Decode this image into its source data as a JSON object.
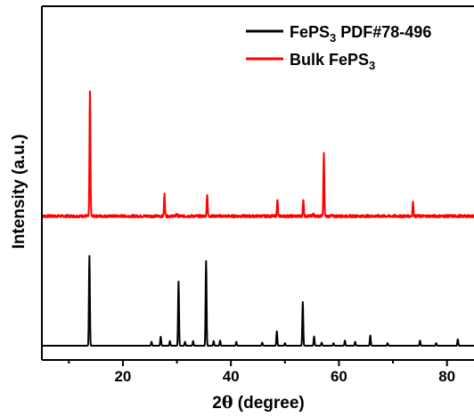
{
  "chart_data": {
    "type": "line",
    "xlabel": "2θ (degree)",
    "ylabel": "Intensity (a.u.)",
    "xlim": [
      5,
      85
    ],
    "x_ticks": [
      20,
      40,
      60,
      80
    ],
    "x_tick_labels": [
      "20",
      "40",
      "60",
      "80"
    ],
    "y_ticks_shown": false,
    "ylim": [
      0,
      100
    ],
    "legend_position": "top-right",
    "series": [
      {
        "name": "FePS3 PDF#78-496",
        "color": "#000000",
        "baseline": 0,
        "noise": 0,
        "peaks": [
          [
            13.8,
            35
          ],
          [
            25.3,
            1.5
          ],
          [
            27.0,
            3.5
          ],
          [
            28.7,
            1.8
          ],
          [
            30.3,
            25
          ],
          [
            31.5,
            1.5
          ],
          [
            33.0,
            1.8
          ],
          [
            35.4,
            33
          ],
          [
            36.8,
            1.8
          ],
          [
            38.0,
            2
          ],
          [
            41.0,
            1.5
          ],
          [
            45.8,
            1.2
          ],
          [
            48.5,
            5.6
          ],
          [
            50.0,
            1
          ],
          [
            53.3,
            17
          ],
          [
            55.4,
            3.6
          ],
          [
            56.8,
            1.2
          ],
          [
            59.0,
            1
          ],
          [
            61.1,
            2
          ],
          [
            63.0,
            1.5
          ],
          [
            65.8,
            4
          ],
          [
            69.0,
            1
          ],
          [
            75.0,
            2
          ],
          [
            78.0,
            1
          ],
          [
            82.0,
            2.5
          ]
        ]
      },
      {
        "name": "Bulk FePS3",
        "color": "#ff0000",
        "baseline": 50.5,
        "noise": 0.5,
        "peaks": [
          [
            13.9,
            48.5
          ],
          [
            27.7,
            8.5
          ],
          [
            30.0,
            1
          ],
          [
            35.6,
            8.6
          ],
          [
            48.6,
            6.6
          ],
          [
            53.4,
            6.5
          ],
          [
            55.3,
            1
          ],
          [
            57.2,
            24.3
          ],
          [
            73.7,
            5.4
          ]
        ]
      }
    ]
  },
  "legend": {
    "entries": [
      {
        "main": "FePS",
        "sub": "3",
        "rest": " PDF#78-496",
        "color": "#000000"
      },
      {
        "main": "Bulk FePS",
        "sub": "3",
        "rest": "",
        "color": "#ff0000"
      }
    ]
  },
  "axis": {
    "xlabel_prefix": "2",
    "xlabel_theta": "θ",
    "xlabel_rest": " (degree)",
    "ylabel": "Intensity (a.u.)"
  }
}
